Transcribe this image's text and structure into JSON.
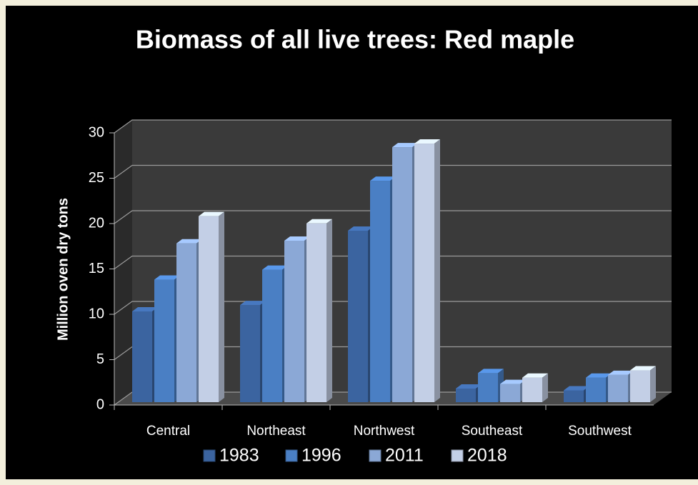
{
  "chart_data": {
    "type": "bar3d",
    "title": "Biomass of all live trees:   Red maple",
    "y_label": "Million oven dry tons",
    "categories": [
      "Central",
      "Northeast",
      "Northwest",
      "Southeast",
      "Southwest"
    ],
    "series": [
      {
        "name": "1983",
        "color": "#3b64a0",
        "values": [
          10,
          10.7,
          18.9,
          1.5,
          1.3
        ]
      },
      {
        "name": "1996",
        "color": "#4a7fc4",
        "values": [
          13.5,
          14.6,
          24.4,
          3.2,
          2.7
        ]
      },
      {
        "name": "2011",
        "color": "#8ba8d6",
        "values": [
          17.5,
          17.8,
          28.1,
          2.0,
          3.0
        ]
      },
      {
        "name": "2018",
        "color": "#c3cfe6",
        "values": [
          20.5,
          19.7,
          28.5,
          2.7,
          3.5
        ]
      }
    ],
    "ylim": [
      0,
      30
    ],
    "yticks": [
      0,
      5,
      10,
      15,
      20,
      25,
      30
    ],
    "grid": true,
    "legend": "bottom"
  }
}
